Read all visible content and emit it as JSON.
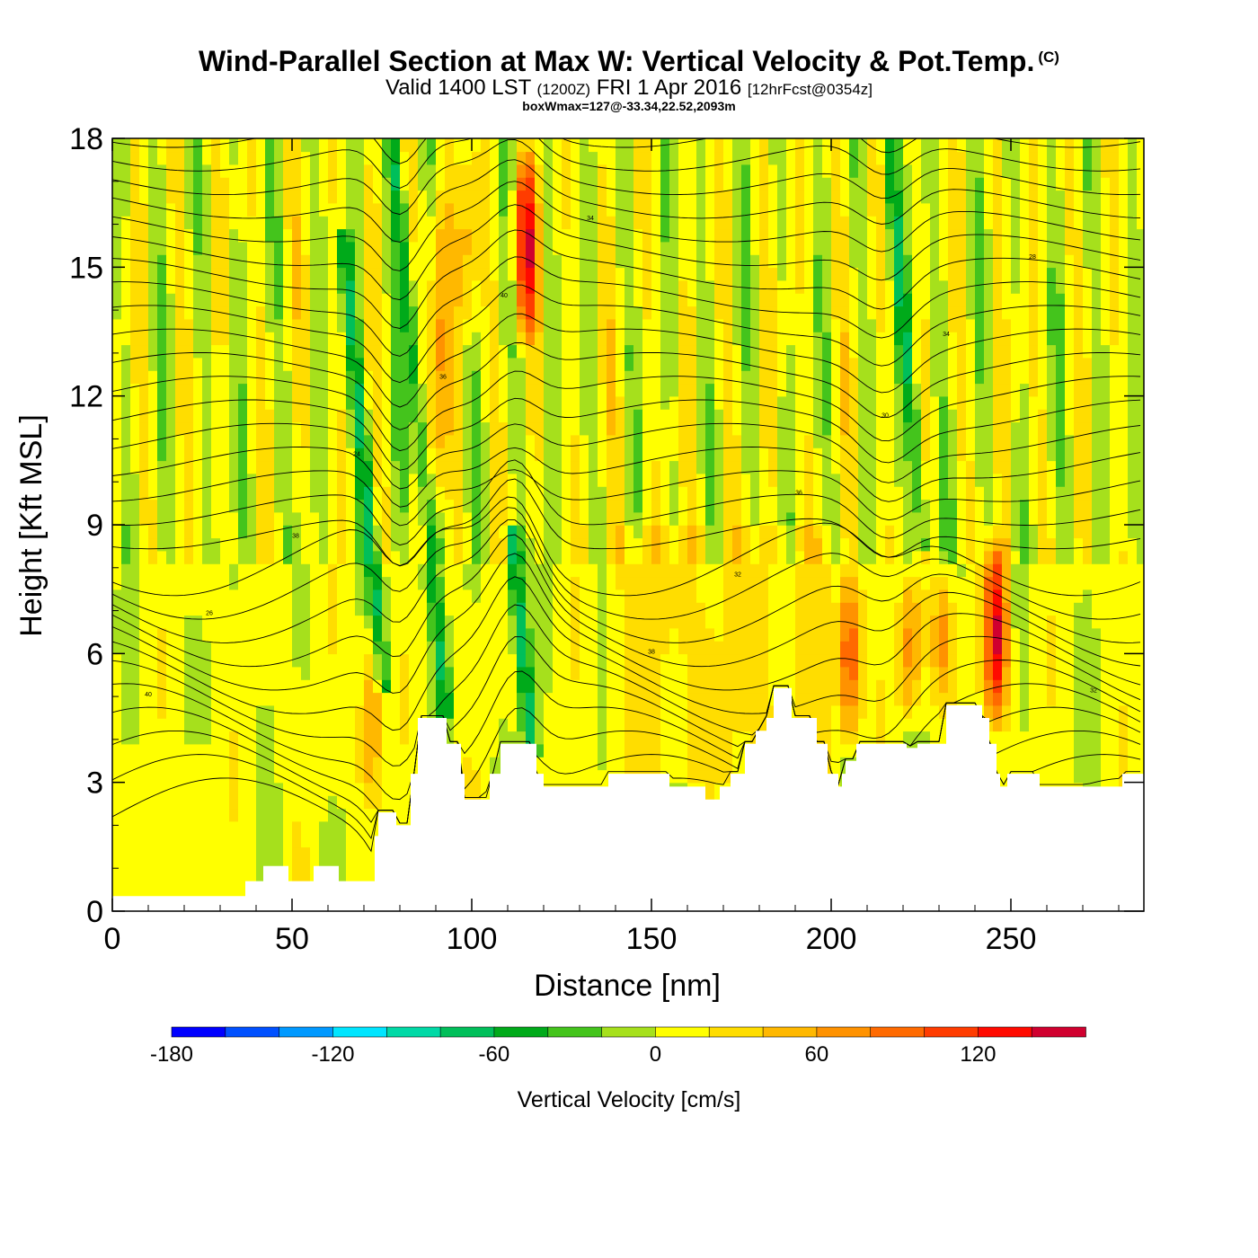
{
  "title": "Wind-Parallel Section at Max W: Vertical Velocity & Pot.Temp.",
  "title_mark": "(C)",
  "subtitle": {
    "valid": "Valid 1400 LST",
    "utc": "(1200Z)",
    "date": "FRI 1 Apr 2016",
    "fcst": "[12hrFcst@0354z]"
  },
  "note": "boxWmax=127@-33.34,22.52,2093m",
  "chart_data": {
    "type": "heatmap",
    "xlabel": "Distance [nm]",
    "ylabel": "Height [Kft MSL]",
    "xlim": [
      0,
      287
    ],
    "ylim": [
      0,
      18
    ],
    "xticks": [
      0,
      50,
      100,
      150,
      200,
      250
    ],
    "yticks": [
      0,
      3,
      6,
      9,
      12,
      15,
      18
    ],
    "colorbar": {
      "title": "Vertical Velocity [cm/s]",
      "levels": [
        -180,
        -160,
        -140,
        -120,
        -100,
        -80,
        -60,
        -40,
        -20,
        0,
        20,
        40,
        60,
        80,
        100,
        120,
        140,
        160
      ],
      "colors": [
        "#0000ff",
        "#0050ff",
        "#0099ff",
        "#00e5ff",
        "#00d9a6",
        "#00bf5a",
        "#00aa1a",
        "#44c41c",
        "#a6e01c",
        "#ffff00",
        "#ffdd00",
        "#ffb800",
        "#ff9200",
        "#ff6a00",
        "#ff3c00",
        "#ff0a00",
        "#d0002f"
      ],
      "tick_labels": [
        -180,
        -120,
        -60,
        0,
        60,
        120
      ]
    },
    "terrain_kft": [
      [
        0,
        0.35
      ],
      [
        35,
        0.35
      ],
      [
        37,
        0.7
      ],
      [
        41,
        0.7
      ],
      [
        42,
        1.05
      ],
      [
        48,
        1.05
      ],
      [
        49,
        0.7
      ],
      [
        55,
        0.7
      ],
      [
        56,
        1.05
      ],
      [
        62,
        1.05
      ],
      [
        63,
        0.7
      ],
      [
        71,
        0.7
      ],
      [
        73,
        1.75
      ],
      [
        74,
        2.3
      ],
      [
        78,
        2.3
      ],
      [
        79,
        2.0
      ],
      [
        82,
        2.0
      ],
      [
        83,
        3.2
      ],
      [
        84,
        3.2
      ],
      [
        85,
        4.5
      ],
      [
        92,
        4.5
      ],
      [
        93,
        3.9
      ],
      [
        95,
        3.9
      ],
      [
        97,
        3.2
      ],
      [
        98,
        2.6
      ],
      [
        104,
        2.6
      ],
      [
        105,
        3.2
      ],
      [
        107,
        3.2
      ],
      [
        108,
        3.9
      ],
      [
        113,
        3.9
      ],
      [
        118,
        3.2
      ],
      [
        120,
        2.9
      ],
      [
        137,
        2.9
      ],
      [
        138,
        3.2
      ],
      [
        154,
        3.2
      ],
      [
        155,
        2.9
      ],
      [
        164,
        2.9
      ],
      [
        165,
        2.6
      ],
      [
        168,
        2.6
      ],
      [
        169,
        2.9
      ],
      [
        172,
        3.2
      ],
      [
        176,
        3.9
      ],
      [
        179,
        4.2
      ],
      [
        182,
        4.5
      ],
      [
        184,
        5.2
      ],
      [
        187,
        5.2
      ],
      [
        189,
        4.5
      ],
      [
        193,
        4.5
      ],
      [
        196,
        3.9
      ],
      [
        199,
        3.2
      ],
      [
        202,
        2.9
      ],
      [
        203,
        3.2
      ],
      [
        204,
        3.5
      ],
      [
        207,
        3.9
      ],
      [
        220,
        3.9
      ],
      [
        221,
        3.8
      ],
      [
        223,
        3.8
      ],
      [
        224,
        3.9
      ],
      [
        231,
        3.9
      ],
      [
        232,
        4.8
      ],
      [
        240,
        4.8
      ],
      [
        242,
        4.5
      ],
      [
        244,
        3.9
      ],
      [
        246,
        3.2
      ],
      [
        247,
        2.9
      ],
      [
        249,
        3.2
      ],
      [
        257,
        3.2
      ],
      [
        258,
        2.9
      ],
      [
        268,
        2.9
      ],
      [
        278,
        2.9
      ],
      [
        281,
        3.2
      ],
      [
        287,
        3.2
      ]
    ],
    "updraft_cores": [
      {
        "x": 72,
        "zmin": 2,
        "zmax": 7,
        "w": 60
      },
      {
        "x": 91,
        "zmin": 9,
        "zmax": 18,
        "w": 60
      },
      {
        "x": 99,
        "zmin": 13,
        "zmax": 18,
        "w": 40
      },
      {
        "x": 115,
        "zmin": 13,
        "zmax": 18,
        "w": 120
      },
      {
        "x": 205,
        "zmin": 3.5,
        "zmax": 8.3,
        "w": 100
      },
      {
        "x": 222,
        "zmin": 4,
        "zmax": 8,
        "w": 60
      },
      {
        "x": 231,
        "zmin": 4.5,
        "zmax": 8.3,
        "w": 60
      },
      {
        "x": 246,
        "zmin": 4,
        "zmax": 9,
        "w": 127
      }
    ],
    "downdraft_bands": [
      {
        "x": 76,
        "zmin": 5,
        "zmax": 16,
        "w": -60
      },
      {
        "x": 93,
        "zmin": 4.5,
        "zmax": 18,
        "w": -60
      },
      {
        "x": 117,
        "zmin": 3.5,
        "zmax": 9,
        "w": -80
      },
      {
        "x": 226,
        "zmin": 8.5,
        "zmax": 18,
        "w": -60
      }
    ],
    "theta_contour_labels": [
      "40",
      "38",
      "36",
      "34",
      "32",
      "30",
      "28",
      "26",
      "24"
    ]
  }
}
